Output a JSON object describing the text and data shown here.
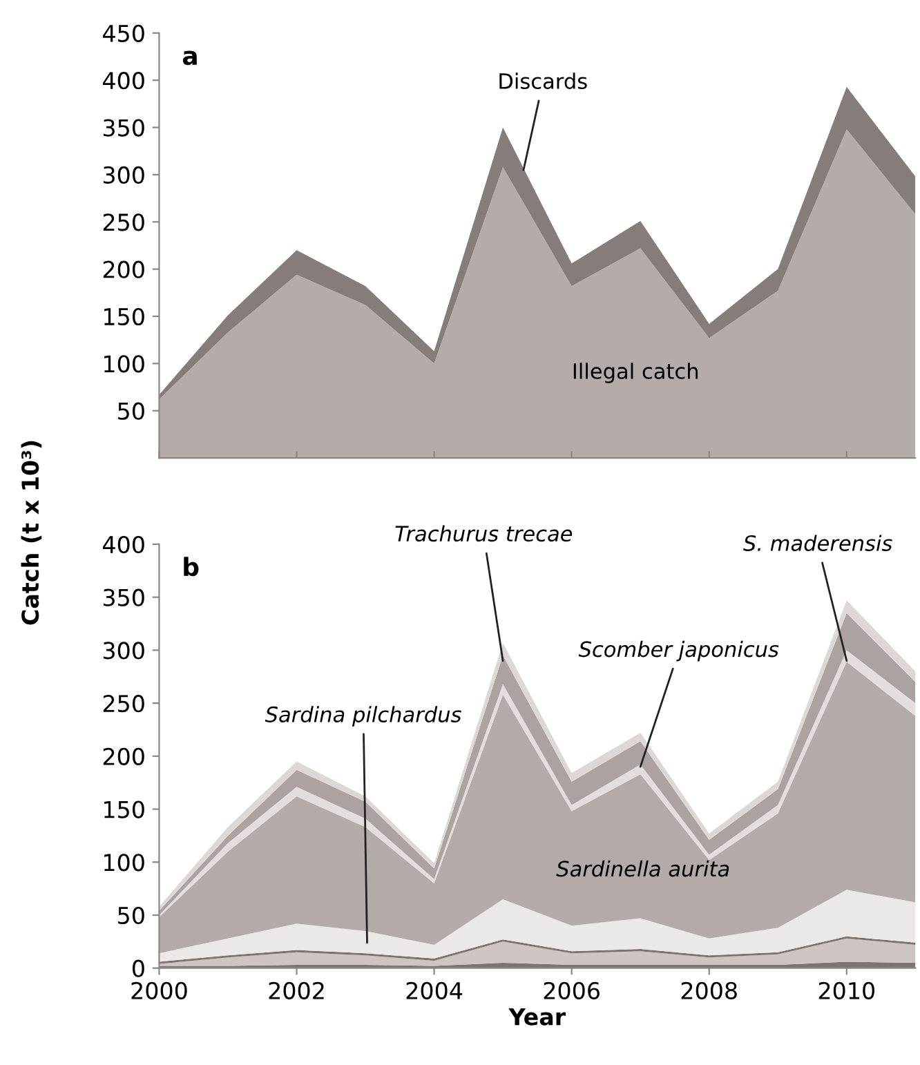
{
  "chart_data": [
    {
      "type": "area",
      "stacked": true,
      "title": "a",
      "ylabel": "Catch (t x 10³)",
      "x": [
        2000,
        2001,
        2002,
        2003,
        2004,
        2005,
        2006,
        2007,
        2008,
        2009,
        2010,
        2011
      ],
      "series": [
        {
          "color": "#b3aca8",
          "values": [
            62,
            133,
            194,
            162,
            100,
            308,
            182,
            222,
            127,
            177,
            348,
            258
          ]
        },
        {
          "color": "#857d79",
          "values": [
            5,
            18,
            26,
            20,
            13,
            42,
            24,
            29,
            15,
            23,
            45,
            40
          ]
        }
      ],
      "xlim": [
        2000,
        2011
      ],
      "ylim": [
        0,
        450
      ],
      "xticks": [
        2000,
        2002,
        2004,
        2006,
        2008,
        2010
      ],
      "yticks": [
        50,
        100,
        150,
        200,
        250,
        300,
        350,
        400,
        450
      ],
      "tick_labels": "y",
      "annotations": [
        {
          "text": "Discards",
          "x": 2005.3,
          "y": 305
        },
        "Illegal catch"
      ]
    },
    {
      "type": "area",
      "stacked": true,
      "title": "b",
      "xlabel": "Year",
      "x": [
        2000,
        2001,
        2002,
        2003,
        2004,
        2005,
        2006,
        2007,
        2008,
        2009,
        2010,
        2011
      ],
      "series": [
        {
          "color": "#7d7470",
          "values": [
            2,
            2,
            3,
            3,
            2,
            5,
            3,
            3,
            3,
            3,
            6,
            5
          ]
        },
        {
          "color": "#cdc5c2",
          "values": [
            2,
            8,
            12,
            9,
            5,
            20,
            11,
            13,
            7,
            10,
            22,
            17
          ]
        },
        {
          "color": "#7d7470",
          "values": [
            2,
            2,
            2,
            2,
            2,
            2,
            2,
            2,
            2,
            2,
            2,
            2
          ]
        },
        {
          "color": "#ece8e6",
          "values": [
            8,
            16,
            25,
            21,
            13,
            38,
            24,
            29,
            16,
            23,
            44,
            38
          ]
        },
        {
          "color": "#b3aba7",
          "values": [
            34,
            82,
            120,
            98,
            58,
            193,
            108,
            136,
            74,
            108,
            215,
            176
          ]
        },
        {
          "color": "#e3dedc",
          "values": [
            2,
            8,
            9,
            8,
            4,
            10,
            6,
            9,
            5,
            8,
            11,
            12
          ]
        },
        {
          "color": "#aba39f",
          "values": [
            4,
            7,
            16,
            16,
            10,
            27,
            22,
            22,
            14,
            15,
            35,
            20
          ]
        },
        {
          "color": "#ddd8d6",
          "values": [
            4,
            8,
            8,
            5,
            5,
            12,
            8,
            8,
            6,
            7,
            12,
            10
          ]
        }
      ],
      "xlim": [
        2000,
        2011
      ],
      "ylim": [
        0,
        400
      ],
      "xticks": [
        2000,
        2002,
        2004,
        2006,
        2008,
        2010
      ],
      "yticks": [
        0,
        50,
        100,
        150,
        200,
        250,
        300,
        350,
        400
      ],
      "annotations": [
        "Sardina pilchardus",
        {
          "text": "Trachurus trecae",
          "x": 2005,
          "y": 290
        },
        {
          "text": "Scomber japonicus",
          "x": 2007,
          "y": 190
        },
        {
          "text": "S. maderensis",
          "x": 2010,
          "y": 290
        },
        "Sardinella aurita"
      ]
    }
  ]
}
